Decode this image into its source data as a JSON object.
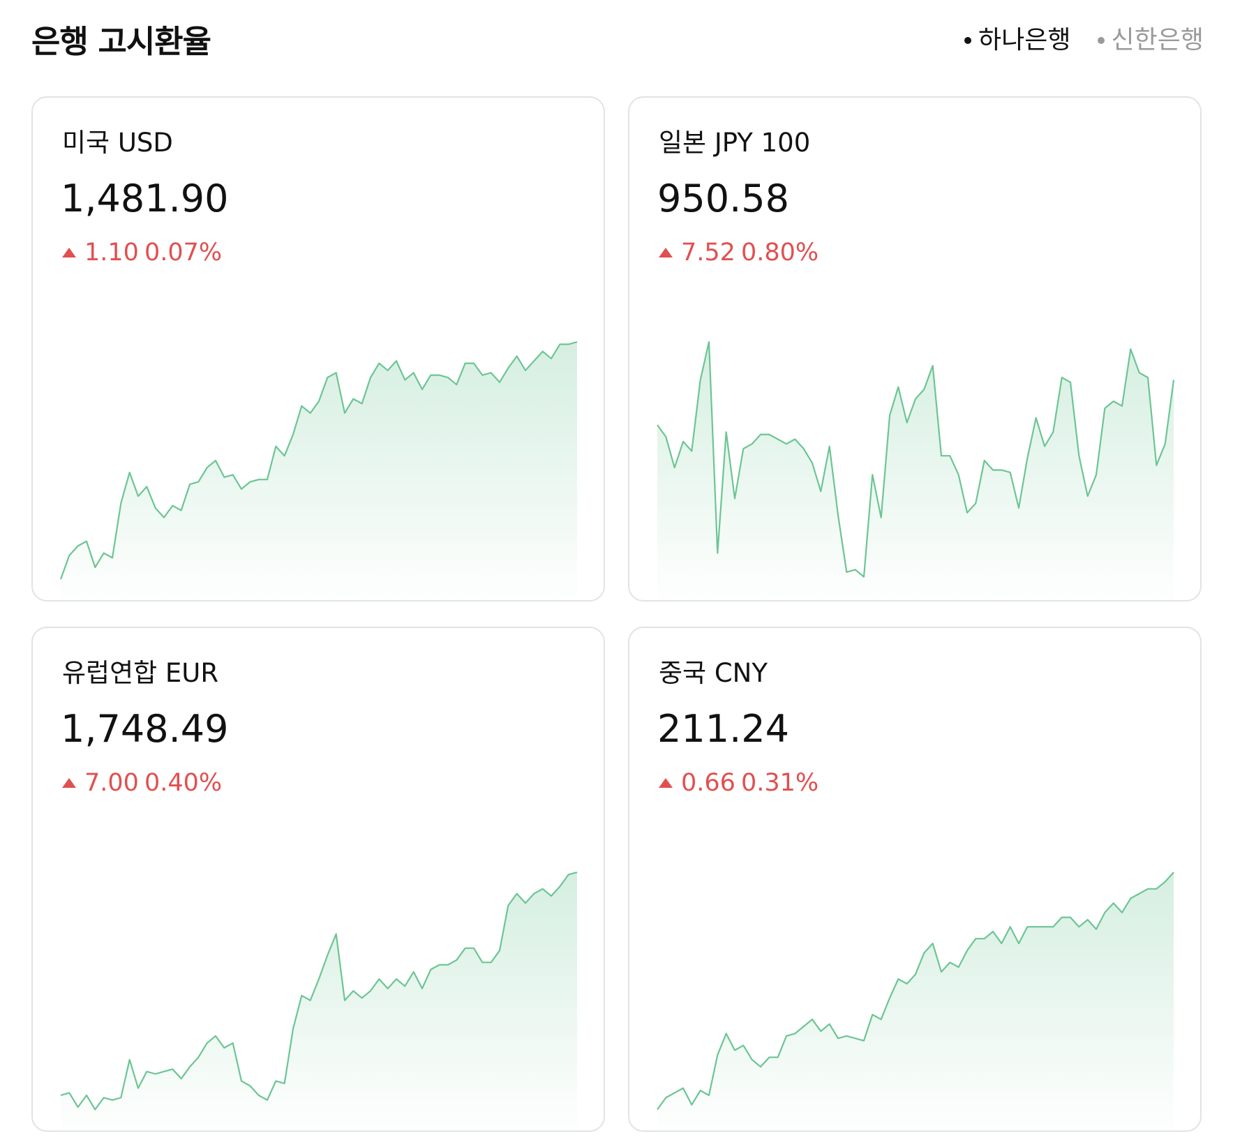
{
  "header": {
    "title": "은행 고시환율",
    "banks": [
      {
        "label": "하나은행",
        "active": true
      },
      {
        "label": "신한은행",
        "active": false
      }
    ]
  },
  "colors": {
    "line": "#6cc594",
    "fill": "#6cc594",
    "up": "#e05050"
  },
  "cards": [
    {
      "title": "미국 USD",
      "rate": "1,481.90",
      "change": "1.10",
      "change_pct": "0.07%",
      "direction": "up",
      "trend": [
        0.0,
        0.1,
        0.14,
        0.16,
        0.05,
        0.11,
        0.09,
        0.32,
        0.45,
        0.35,
        0.39,
        0.3,
        0.26,
        0.31,
        0.29,
        0.4,
        0.41,
        0.47,
        0.5,
        0.43,
        0.44,
        0.38,
        0.41,
        0.42,
        0.42,
        0.56,
        0.52,
        0.61,
        0.73,
        0.7,
        0.75,
        0.85,
        0.87,
        0.7,
        0.76,
        0.74,
        0.85,
        0.91,
        0.88,
        0.92,
        0.84,
        0.87,
        0.8,
        0.86,
        0.86,
        0.85,
        0.82,
        0.91,
        0.91,
        0.86,
        0.87,
        0.83,
        0.89,
        0.94,
        0.88,
        0.92,
        0.96,
        0.93,
        0.99,
        0.99,
        1.0
      ]
    },
    {
      "title": "일본 JPY 100",
      "rate": "950.58",
      "change": "7.52",
      "change_pct": "0.80%",
      "direction": "up",
      "trend": [
        0.65,
        0.6,
        0.47,
        0.58,
        0.54,
        0.84,
        1.0,
        0.11,
        0.62,
        0.34,
        0.55,
        0.57,
        0.61,
        0.61,
        0.59,
        0.57,
        0.59,
        0.55,
        0.49,
        0.37,
        0.56,
        0.27,
        0.03,
        0.04,
        0.01,
        0.44,
        0.26,
        0.69,
        0.81,
        0.66,
        0.76,
        0.8,
        0.9,
        0.52,
        0.52,
        0.44,
        0.28,
        0.32,
        0.5,
        0.46,
        0.46,
        0.45,
        0.3,
        0.51,
        0.68,
        0.56,
        0.62,
        0.85,
        0.83,
        0.52,
        0.35,
        0.44,
        0.72,
        0.75,
        0.73,
        0.97,
        0.87,
        0.85,
        0.48,
        0.57,
        0.84
      ]
    },
    {
      "title": "유럽연합 EUR",
      "rate": "1,748.49",
      "change": "7.00",
      "change_pct": "0.40%",
      "direction": "up",
      "trend": [
        0.06,
        0.07,
        0.01,
        0.06,
        0.0,
        0.05,
        0.04,
        0.05,
        0.21,
        0.09,
        0.16,
        0.15,
        0.16,
        0.17,
        0.13,
        0.18,
        0.22,
        0.28,
        0.31,
        0.26,
        0.28,
        0.12,
        0.1,
        0.06,
        0.04,
        0.12,
        0.11,
        0.34,
        0.48,
        0.46,
        0.55,
        0.65,
        0.74,
        0.46,
        0.5,
        0.47,
        0.5,
        0.55,
        0.51,
        0.55,
        0.52,
        0.58,
        0.51,
        0.59,
        0.61,
        0.61,
        0.63,
        0.68,
        0.68,
        0.62,
        0.62,
        0.67,
        0.86,
        0.91,
        0.87,
        0.91,
        0.93,
        0.9,
        0.94,
        0.99,
        1.0
      ]
    },
    {
      "title": "중국 CNY",
      "rate": "211.24",
      "change": "0.66",
      "change_pct": "0.31%",
      "direction": "up",
      "trend": [
        0.0,
        0.05,
        0.07,
        0.09,
        0.02,
        0.08,
        0.06,
        0.23,
        0.32,
        0.25,
        0.27,
        0.21,
        0.18,
        0.22,
        0.22,
        0.31,
        0.32,
        0.35,
        0.38,
        0.33,
        0.36,
        0.3,
        0.31,
        0.3,
        0.29,
        0.4,
        0.38,
        0.47,
        0.55,
        0.53,
        0.57,
        0.66,
        0.7,
        0.58,
        0.62,
        0.6,
        0.67,
        0.72,
        0.72,
        0.75,
        0.7,
        0.77,
        0.7,
        0.77,
        0.77,
        0.77,
        0.77,
        0.81,
        0.81,
        0.77,
        0.8,
        0.76,
        0.83,
        0.87,
        0.83,
        0.89,
        0.91,
        0.93,
        0.93,
        0.96,
        1.0
      ]
    }
  ]
}
